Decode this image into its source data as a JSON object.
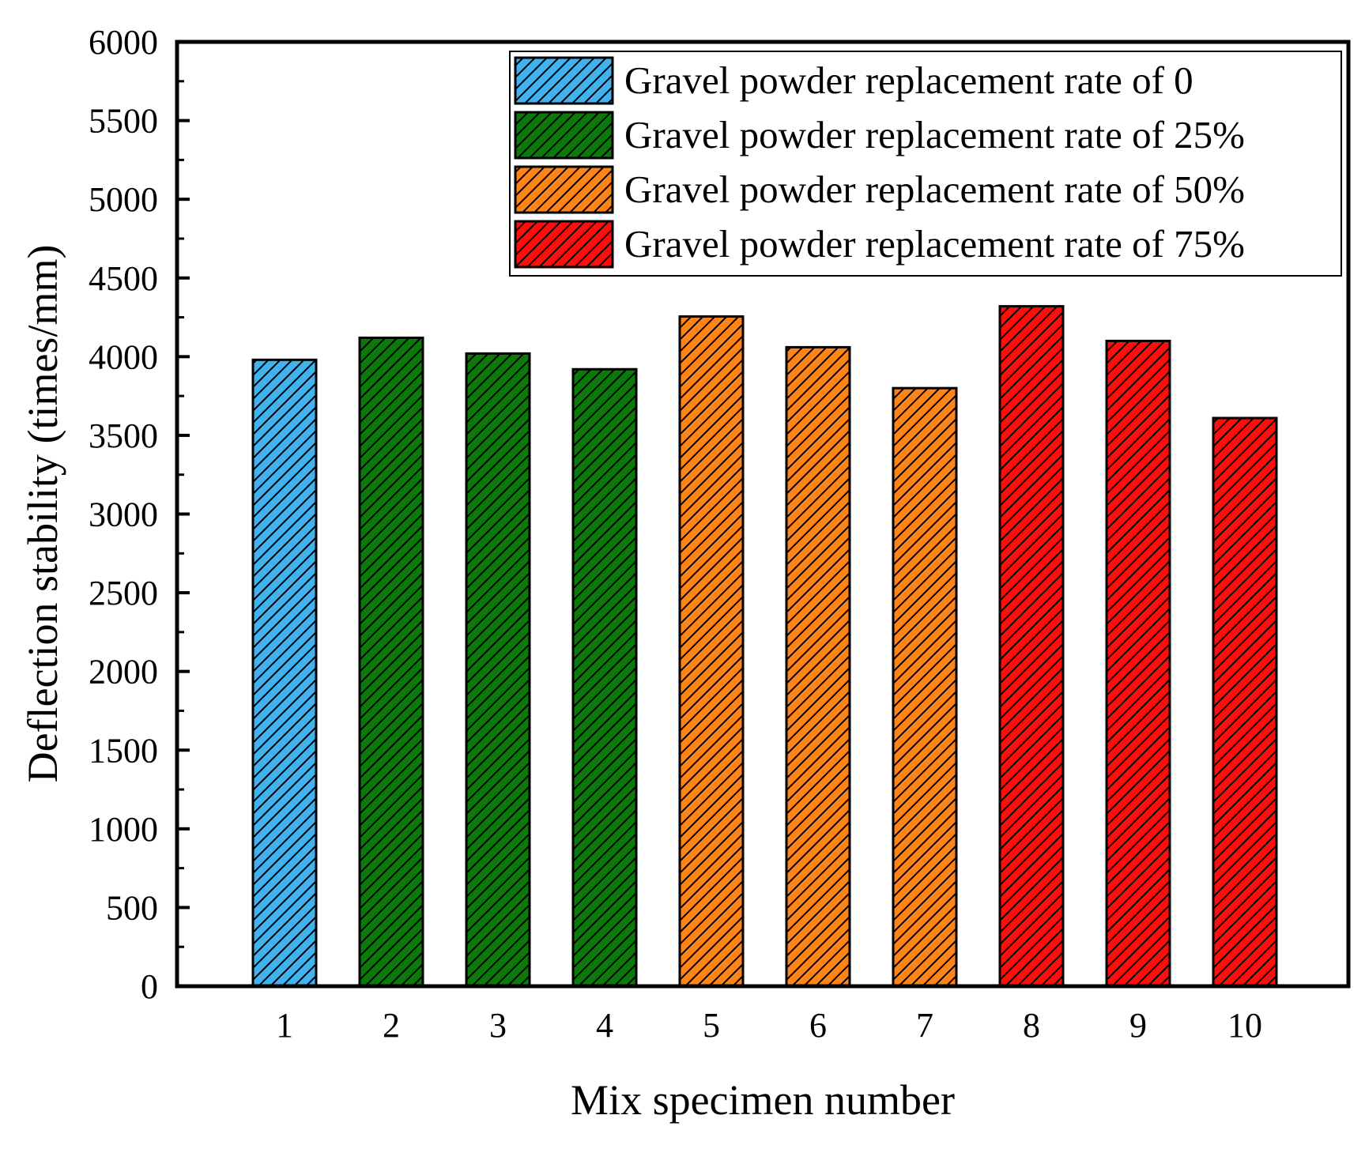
{
  "chart_data": {
    "type": "bar",
    "title": "",
    "xlabel": "Mix specimen number",
    "ylabel": "Deflection stability (times/mm)",
    "ylim": [
      0,
      6000
    ],
    "yticks": [
      0,
      500,
      1000,
      1500,
      2000,
      2500,
      3000,
      3500,
      4000,
      4500,
      5000,
      5500,
      6000
    ],
    "ytick_labels": [
      "0",
      "500",
      "1000",
      "1500",
      "2000",
      "2500",
      "3000",
      "3500",
      "4000",
      "4500",
      "5000",
      "5500",
      "6000"
    ],
    "categories": [
      "1",
      "2",
      "3",
      "4",
      "5",
      "6",
      "7",
      "8",
      "9",
      "10"
    ],
    "values": [
      3980,
      4120,
      4020,
      3920,
      4255,
      4060,
      3800,
      4320,
      4100,
      3610
    ],
    "bar_series": [
      0,
      1,
      1,
      1,
      2,
      2,
      2,
      3,
      3,
      3
    ],
    "series": [
      {
        "name": "Gravel powder replacement rate of 0",
        "color": "#3fb2ef"
      },
      {
        "name": "Gravel powder replacement rate of 25%",
        "color": "#0b7a0b"
      },
      {
        "name": "Gravel powder replacement rate of 50%",
        "color": "#ff8418"
      },
      {
        "name": "Gravel powder replacement rate of 75%",
        "color": "#ff0c0c"
      }
    ],
    "legend_position": "top-right",
    "hatch": "diagonal",
    "grid": false
  }
}
